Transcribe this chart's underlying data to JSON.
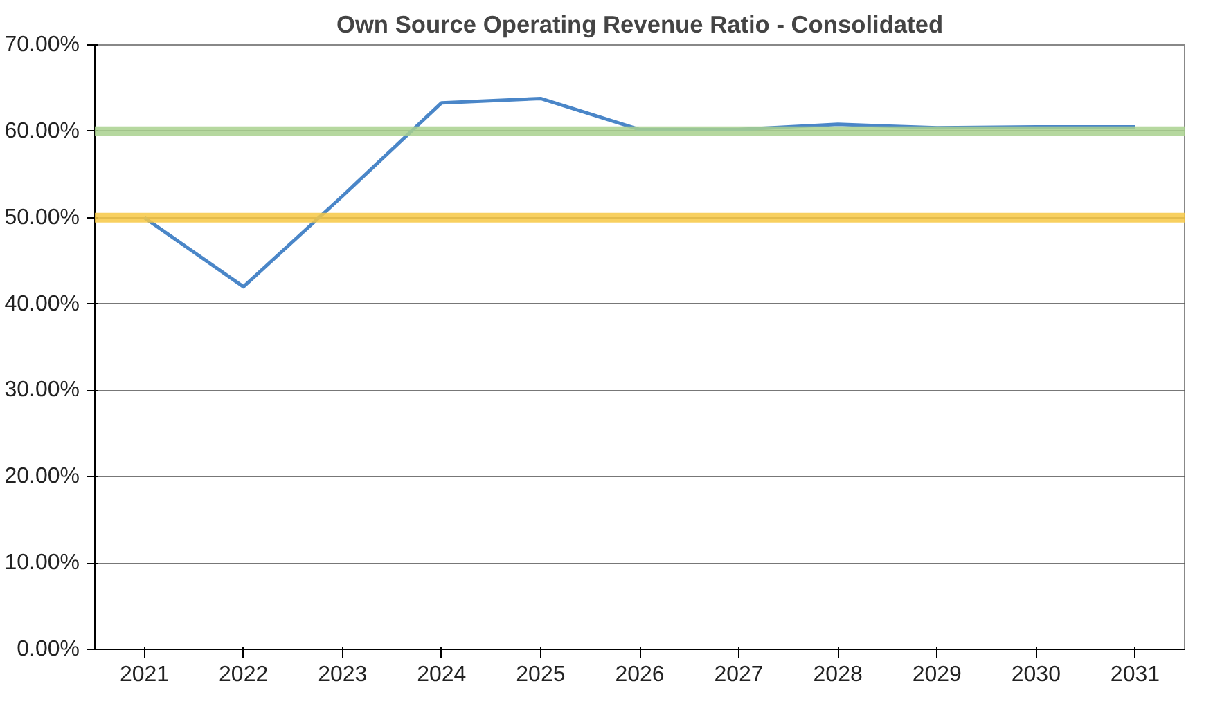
{
  "chart_data": {
    "type": "line",
    "title": "Own Source Operating Revenue Ratio - Consolidated",
    "categories": [
      "2021",
      "2022",
      "2023",
      "2024",
      "2025",
      "2026",
      "2027",
      "2028",
      "2029",
      "2030",
      "2031"
    ],
    "series": [
      {
        "color": "#4a86c8",
        "values": [
          50.0,
          42.0,
          52.5,
          63.3,
          63.8,
          60.2,
          60.2,
          60.8,
          60.4,
          60.5,
          60.5
        ]
      }
    ],
    "ylim": [
      0,
      70
    ],
    "yticks": [
      {
        "value": 0,
        "label": "0.00%"
      },
      {
        "value": 10,
        "label": "10.00%"
      },
      {
        "value": 20,
        "label": "20.00%"
      },
      {
        "value": 30,
        "label": "30.00%"
      },
      {
        "value": 40,
        "label": "40.00%"
      },
      {
        "value": 50,
        "label": "50.00%"
      },
      {
        "value": 60,
        "label": "60.00%"
      },
      {
        "value": 70,
        "label": "70.00%"
      }
    ],
    "ref_lines": [
      {
        "axis": "y",
        "value": 60,
        "color": "#a9d18e"
      },
      {
        "axis": "y",
        "value": 50,
        "color": "#f7c844"
      }
    ],
    "grid": "y",
    "marker": "none",
    "line_style": "solid"
  }
}
